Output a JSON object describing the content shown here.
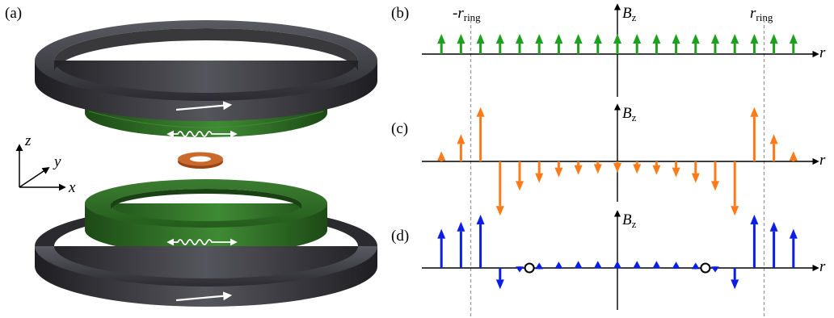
{
  "panels": {
    "a": "(a)",
    "b": "(b)",
    "c": "(c)",
    "d": "(d)"
  },
  "axes3d": {
    "z": "z",
    "y": "y",
    "x": "x"
  },
  "plot": {
    "neg_ring_prefix": "-",
    "ring_symbol": "r",
    "ring_subscript": "ring",
    "r_axis": "r",
    "bz_symbol": "B",
    "bz_subscript": "z"
  },
  "colors": {
    "coil": "#3a3a40",
    "green_ring": "#2f6b24",
    "orange": "#ff7a18",
    "green": "#1ea01e",
    "blue": "#0a1ee6",
    "small_ring": "#b5531c"
  },
  "chart_data": [
    {
      "panel": "b",
      "type": "quiver",
      "x": [
        -9,
        -8,
        -7,
        -6,
        -5,
        -4,
        -3,
        -2,
        -1,
        0,
        1,
        2,
        3,
        4,
        5,
        6,
        7,
        8,
        9
      ],
      "values": [
        1,
        1,
        1,
        1,
        1,
        1,
        1,
        1,
        1,
        1,
        1,
        1,
        1,
        1,
        1,
        1,
        1,
        1,
        1
      ],
      "ring_x": [
        -7.5,
        7.5
      ]
    },
    {
      "panel": "c",
      "type": "quiver",
      "x": [
        -9,
        -8,
        -7,
        -6,
        -5,
        -4,
        -3,
        -2,
        -1,
        0,
        1,
        2,
        3,
        4,
        5,
        6,
        7,
        8,
        9
      ],
      "values": [
        0.45,
        1.2,
        2.4,
        -2.4,
        -1.3,
        -0.95,
        -0.7,
        -0.6,
        -0.55,
        -0.5,
        -0.55,
        -0.6,
        -0.7,
        -0.95,
        -1.3,
        -2.4,
        2.4,
        1.2,
        0.45
      ],
      "ring_x": [
        -7.5,
        7.5
      ]
    },
    {
      "panel": "d",
      "type": "quiver",
      "x": [
        -9,
        -8,
        -7,
        -6,
        -5,
        -4,
        -3,
        -2,
        -1,
        0,
        1,
        2,
        3,
        4,
        5,
        6,
        7,
        8,
        9
      ],
      "values": [
        2.2,
        2.6,
        3.0,
        -1.2,
        -0.25,
        0.3,
        0.35,
        0.4,
        0.4,
        0.4,
        0.4,
        0.4,
        0.35,
        0.3,
        -0.25,
        -1.2,
        3.0,
        2.6,
        2.2
      ],
      "zero_crossings_x": [
        -4.5,
        4.5
      ],
      "ring_x": [
        -7.5,
        7.5
      ]
    }
  ]
}
